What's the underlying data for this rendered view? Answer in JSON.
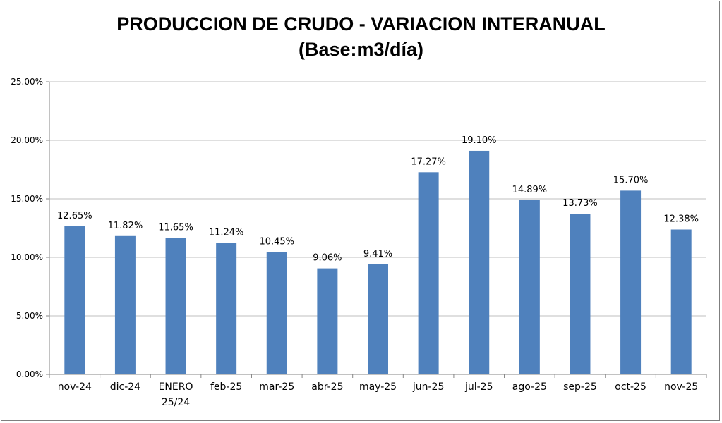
{
  "chart_data": {
    "type": "bar",
    "title": "PRODUCCION DE CRUDO - VARIACION INTERANUAL",
    "subtitle": "(Base:m3/día)",
    "categories": [
      "nov-24",
      "dic-24",
      "ENERO 25/24",
      "feb-25",
      "mar-25",
      "abr-25",
      "may-25",
      "jun-25",
      "jul-25",
      "ago-25",
      "sep-25",
      "oct-25",
      "nov-25"
    ],
    "category_lines": [
      [
        "nov-24"
      ],
      [
        "dic-24"
      ],
      [
        "ENERO",
        "25/24"
      ],
      [
        "feb-25"
      ],
      [
        "mar-25"
      ],
      [
        "abr-25"
      ],
      [
        "may-25"
      ],
      [
        "jun-25"
      ],
      [
        "jul-25"
      ],
      [
        "ago-25"
      ],
      [
        "sep-25"
      ],
      [
        "oct-25"
      ],
      [
        "nov-25"
      ]
    ],
    "values": [
      12.65,
      11.82,
      11.65,
      11.24,
      10.45,
      9.06,
      9.41,
      17.27,
      19.1,
      14.89,
      13.73,
      15.7,
      12.38
    ],
    "data_labels": [
      "12.65%",
      "11.82%",
      "11.65%",
      "11.24%",
      "10.45%",
      "9.06%",
      "9.41%",
      "17.27%",
      "19.10%",
      "14.89%",
      "13.73%",
      "15.70%",
      "12.38%"
    ],
    "ylim": [
      0,
      25
    ],
    "yticks": [
      0,
      5,
      10,
      15,
      20,
      25
    ],
    "ytick_labels": [
      "0.00%",
      "5.00%",
      "10.00%",
      "15.00%",
      "20.00%",
      "25.00%"
    ],
    "grid": true,
    "legend": "none",
    "bar_color": "#4F81BD",
    "grid_color": "#BFBFBF"
  }
}
